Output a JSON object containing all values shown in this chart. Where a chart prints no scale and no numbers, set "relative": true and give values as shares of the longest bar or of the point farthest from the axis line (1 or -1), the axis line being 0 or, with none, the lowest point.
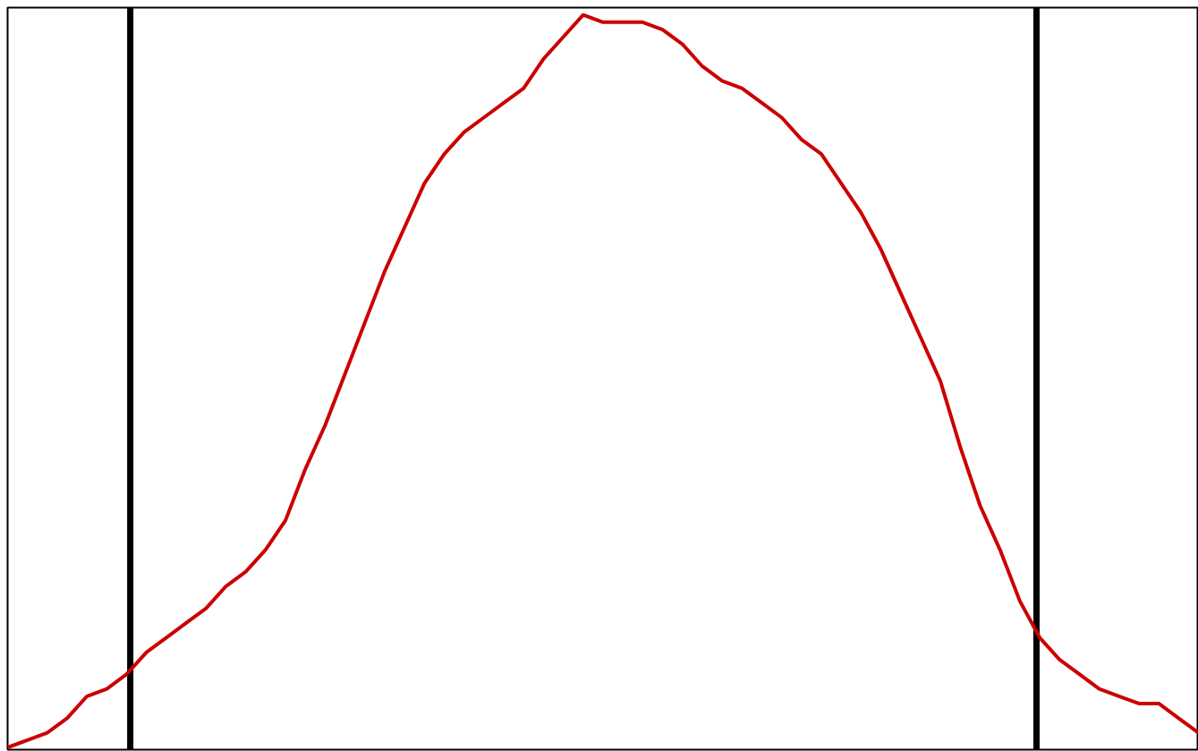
{
  "chart_data": {
    "type": "line",
    "relative": true,
    "categories": [
      null,
      null,
      null,
      null,
      null,
      null,
      null,
      null,
      null,
      null,
      null,
      null,
      null,
      null,
      null,
      null,
      null,
      null,
      null,
      null,
      null,
      null,
      null,
      null,
      null,
      null,
      null,
      null,
      null,
      null,
      null,
      null,
      null,
      null,
      null,
      null,
      null,
      null,
      null,
      null,
      null,
      null,
      null,
      null,
      null,
      null,
      null,
      null,
      null,
      null,
      null,
      null,
      null,
      null,
      null,
      null,
      null,
      null,
      null,
      null,
      null
    ],
    "series": [
      {
        "color": "#cc0000",
        "values": [
          0.0,
          0.01,
          0.02,
          0.04,
          0.07,
          0.08,
          0.1,
          0.13,
          0.15,
          0.17,
          0.19,
          0.22,
          0.24,
          0.27,
          0.31,
          0.38,
          0.44,
          0.51,
          0.58,
          0.65,
          0.71,
          0.77,
          0.81,
          0.84,
          0.86,
          0.88,
          0.9,
          0.94,
          0.97,
          1.0,
          0.99,
          0.99,
          0.99,
          0.98,
          0.96,
          0.93,
          0.91,
          0.9,
          0.88,
          0.86,
          0.83,
          0.81,
          0.77,
          0.73,
          0.68,
          0.62,
          0.56,
          0.5,
          0.41,
          0.33,
          0.27,
          0.2,
          0.15,
          0.12,
          0.1,
          0.08,
          0.07,
          0.06,
          0.06,
          0.04,
          0.02
        ]
      }
    ],
    "grid": false
  }
}
